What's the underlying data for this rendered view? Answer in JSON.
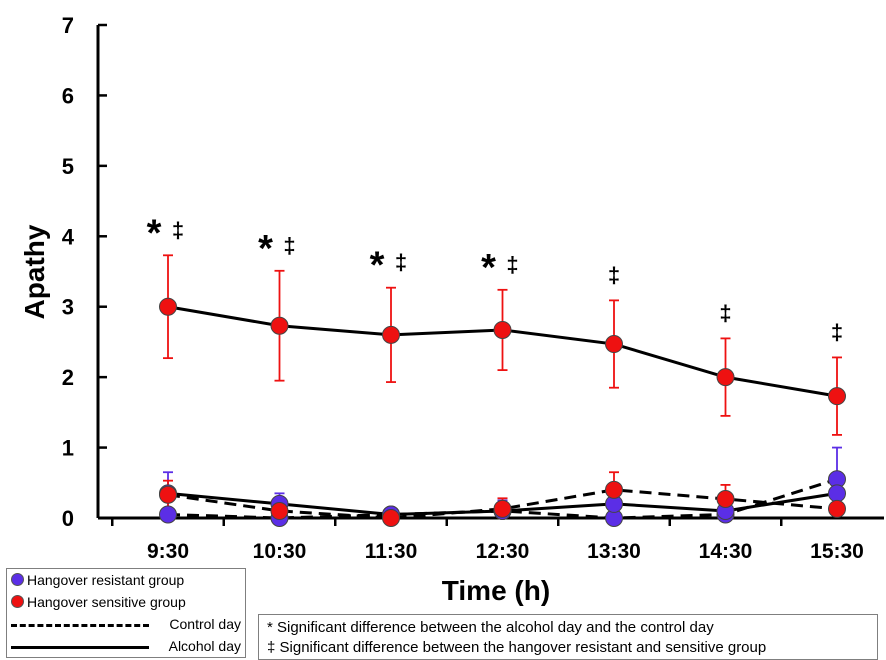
{
  "chart_data": {
    "type": "line",
    "title": "",
    "xlabel": "Time (h)",
    "ylabel": "Apathy",
    "ylim": [
      0,
      7
    ],
    "yticks": [
      "0",
      "1",
      "2",
      "3",
      "4",
      "5",
      "6",
      "7"
    ],
    "categories": [
      "9:30",
      "10:30",
      "11:30",
      "12:30",
      "13:30",
      "14:30",
      "15:30"
    ],
    "series": [
      {
        "name": "Hangover resistant group – Control day",
        "group": "resistant",
        "day": "control",
        "color": "#5b2ee6",
        "values": [
          0.05,
          0.0,
          0.05,
          0.1,
          0.0,
          0.05,
          0.55
        ],
        "error": [
          0,
          0,
          0,
          0,
          0,
          0,
          0.45
        ]
      },
      {
        "name": "Hangover resistant group – Alcohol day",
        "group": "resistant",
        "day": "alcohol",
        "color": "#5b2ee6",
        "values": [
          0.35,
          0.2,
          0.05,
          0.1,
          0.2,
          0.1,
          0.35
        ],
        "error": [
          0.3,
          0.15,
          0,
          0.15,
          0,
          0,
          0
        ]
      },
      {
        "name": "Hangover sensitive group – Control day",
        "group": "sensitive",
        "day": "control",
        "color": "#ee1111",
        "values": [
          0.33,
          0.1,
          0.0,
          0.13,
          0.4,
          0.27,
          0.13
        ],
        "error": [
          0.2,
          0.1,
          0,
          0.15,
          0.25,
          0.2,
          0
        ]
      },
      {
        "name": "Hangover sensitive group – Alcohol day",
        "group": "sensitive",
        "day": "alcohol",
        "color": "#ee1111",
        "values": [
          3.0,
          2.73,
          2.6,
          2.67,
          2.47,
          2.0,
          1.73
        ],
        "error": [
          0.73,
          0.78,
          0.67,
          0.57,
          0.62,
          0.55,
          0.55
        ]
      }
    ],
    "annotations": [
      {
        "category": "9:30",
        "symbols": [
          "*",
          "‡"
        ]
      },
      {
        "category": "10:30",
        "symbols": [
          "*",
          "‡"
        ]
      },
      {
        "category": "11:30",
        "symbols": [
          "*",
          "‡"
        ]
      },
      {
        "category": "12:30",
        "symbols": [
          "*",
          "‡"
        ]
      },
      {
        "category": "13:30",
        "symbols": [
          "‡"
        ]
      },
      {
        "category": "14:30",
        "symbols": [
          "‡"
        ]
      },
      {
        "category": "15:30",
        "symbols": [
          "‡"
        ]
      }
    ],
    "grid": false
  },
  "legend": {
    "resistant_label": "Hangover resistant group",
    "sensitive_label": "Hangover sensitive group",
    "control_label": "Control day",
    "alcohol_label": "Alcohol day",
    "resistant_color": "#5b2ee6",
    "sensitive_color": "#ee1111"
  },
  "notes": {
    "star_line": "* Significant difference between the alcohol day and the control day",
    "dagger_line": "‡ Significant difference between the hangover resistant and sensitive group"
  }
}
